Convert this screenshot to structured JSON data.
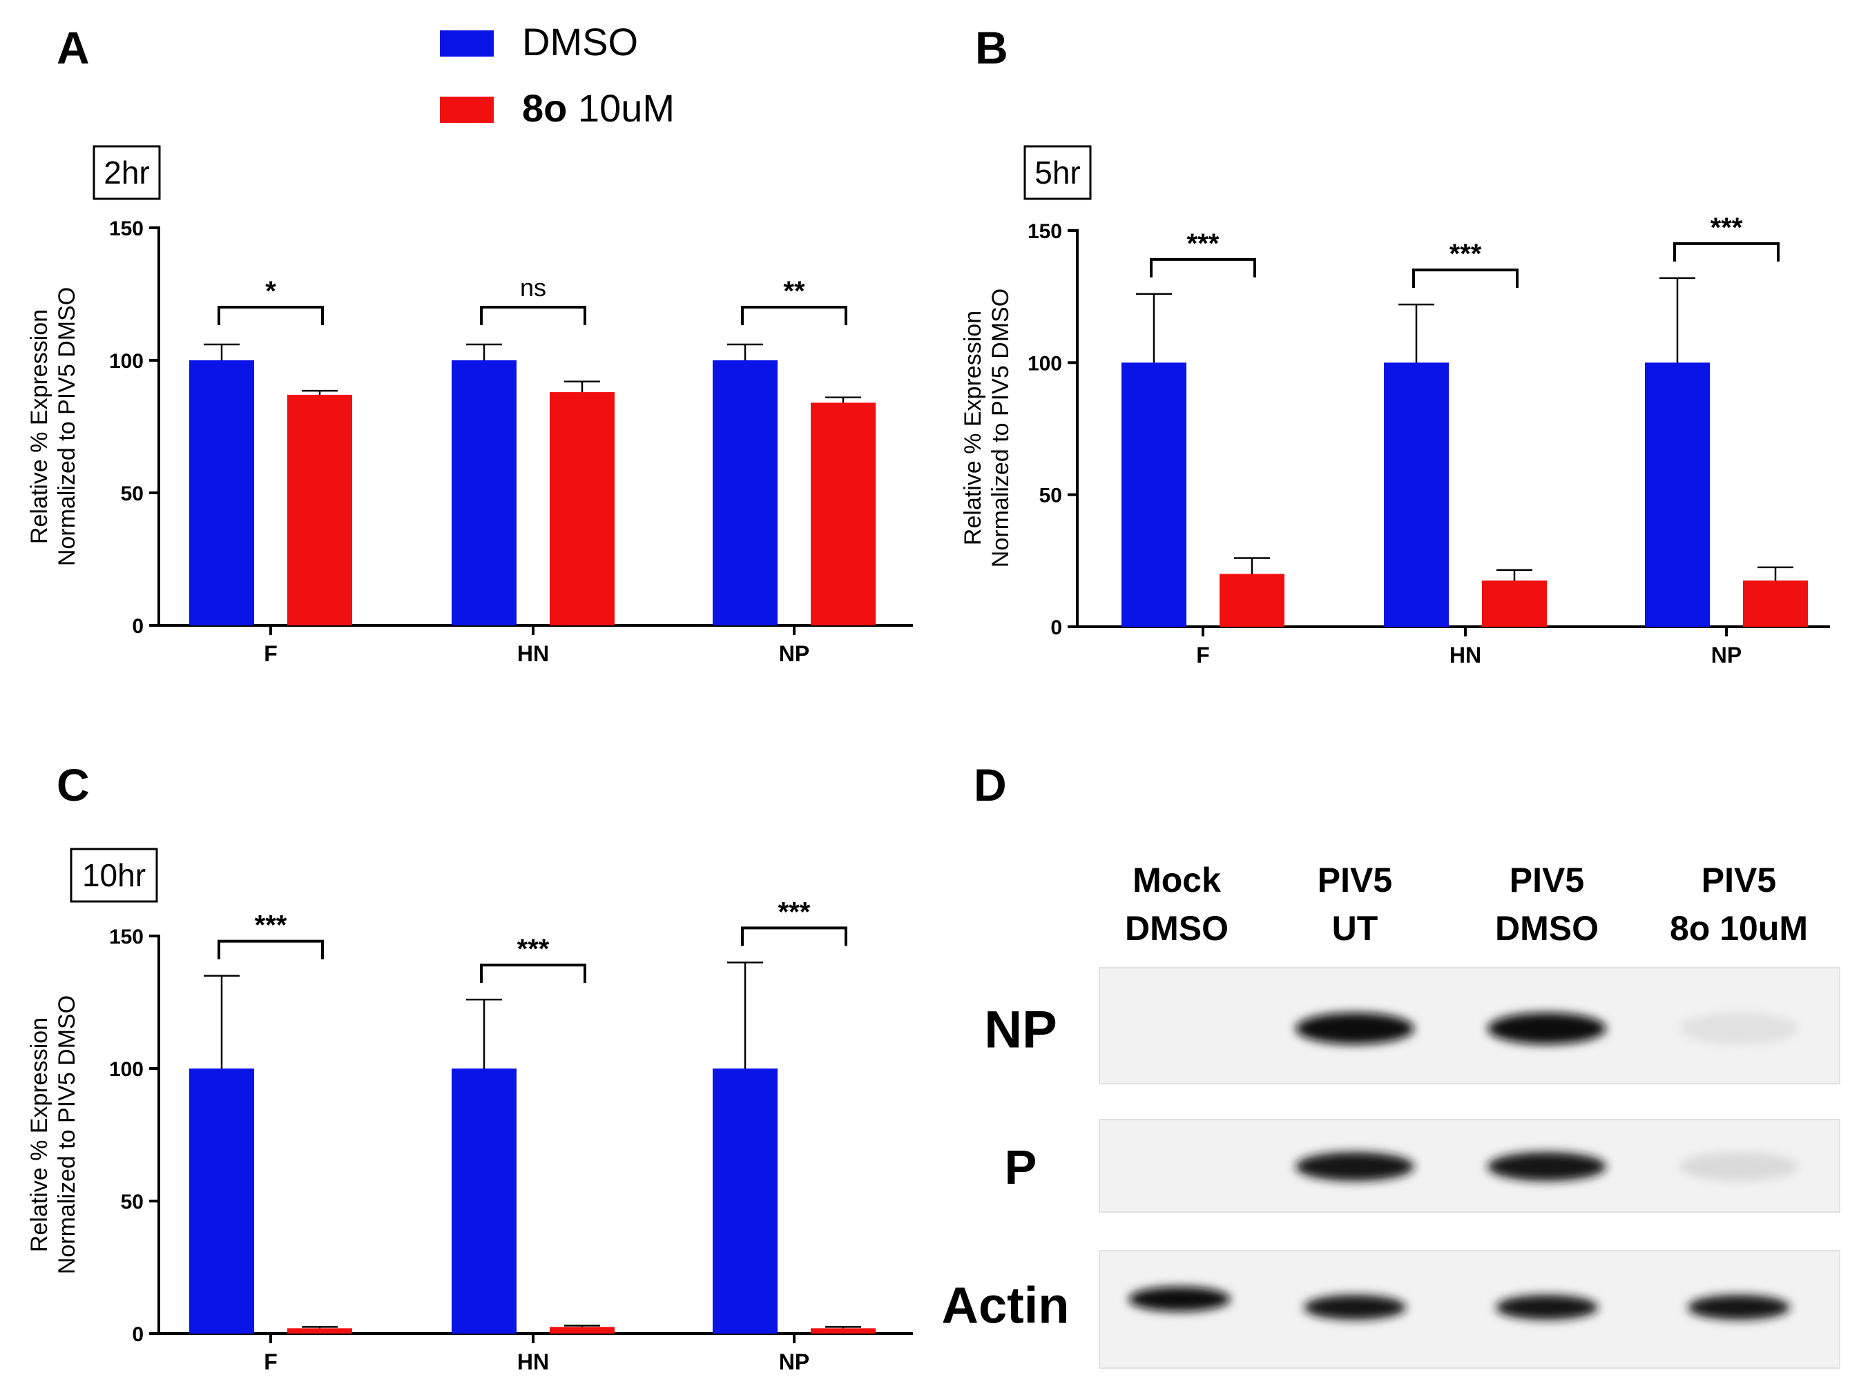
{
  "legend": {
    "items": [
      {
        "bold": "",
        "text": "DMSO",
        "color": "#0a14e6"
      },
      {
        "bold": "8o",
        "text": " 10uM",
        "color": "#f01010"
      }
    ]
  },
  "blot": {
    "letter": "D",
    "lanes": [
      {
        "line1": "Mock",
        "line2": "DMSO"
      },
      {
        "line1": "PIV5",
        "line2": "UT"
      },
      {
        "line1": "PIV5",
        "line2": "DMSO"
      },
      {
        "line1": "PIV5",
        "line2": "8o 10uM"
      }
    ],
    "bands": [
      {
        "label": "NP",
        "intensity": [
          0.0,
          1.0,
          1.0,
          0.12
        ]
      },
      {
        "label": "P",
        "intensity": [
          0.0,
          0.95,
          0.95,
          0.15
        ]
      },
      {
        "label": "Actin",
        "intensity": [
          1.0,
          0.95,
          0.95,
          0.95
        ]
      }
    ]
  },
  "chart_data": [
    {
      "type": "bar",
      "panel": "A",
      "time_label": "2hr",
      "ylabel_line1": "Relative % Expression",
      "ylabel_line2": "Normalized to PIV5 DMSO",
      "ylim": [
        0,
        150
      ],
      "yticks": [
        "0",
        "50",
        "100",
        "150"
      ],
      "categories": [
        "F",
        "HN",
        "NP"
      ],
      "series": [
        {
          "name": "DMSO",
          "values": [
            100,
            100,
            100
          ],
          "errors": [
            6,
            6,
            6
          ]
        },
        {
          "name": "8o 10uM",
          "values": [
            87,
            88,
            84
          ],
          "errors": [
            1.5,
            4,
            2
          ]
        }
      ],
      "significance": [
        "*",
        "ns",
        "**"
      ]
    },
    {
      "type": "bar",
      "panel": "B",
      "time_label": "5hr",
      "ylabel_line1": "Relative % Expression",
      "ylabel_line2": "Normalized to PIV5 DMSO",
      "ylim": [
        0,
        150
      ],
      "yticks": [
        "0",
        "50",
        "100",
        "150"
      ],
      "categories": [
        "F",
        "HN",
        "NP"
      ],
      "series": [
        {
          "name": "DMSO",
          "values": [
            100,
            100,
            100
          ],
          "errors": [
            26,
            22,
            32
          ]
        },
        {
          "name": "8o 10uM",
          "values": [
            20,
            17.5,
            17.5
          ],
          "errors": [
            6,
            4,
            5
          ]
        }
      ],
      "significance": [
        "***",
        "***",
        "***"
      ]
    },
    {
      "type": "bar",
      "panel": "C",
      "time_label": "10hr",
      "ylabel_line1": "Relative % Expression",
      "ylabel_line2": "Normalized to PIV5 DMSO",
      "ylim": [
        0,
        150
      ],
      "yticks": [
        "0",
        "50",
        "100",
        "150"
      ],
      "categories": [
        "F",
        "HN",
        "NP"
      ],
      "series": [
        {
          "name": "DMSO",
          "values": [
            100,
            100,
            100
          ],
          "errors": [
            35,
            26,
            40
          ]
        },
        {
          "name": "8o 10uM",
          "values": [
            2,
            2.5,
            2
          ],
          "errors": [
            0.5,
            0.5,
            0.5
          ]
        }
      ],
      "significance": [
        "***",
        "***",
        "***"
      ]
    }
  ]
}
